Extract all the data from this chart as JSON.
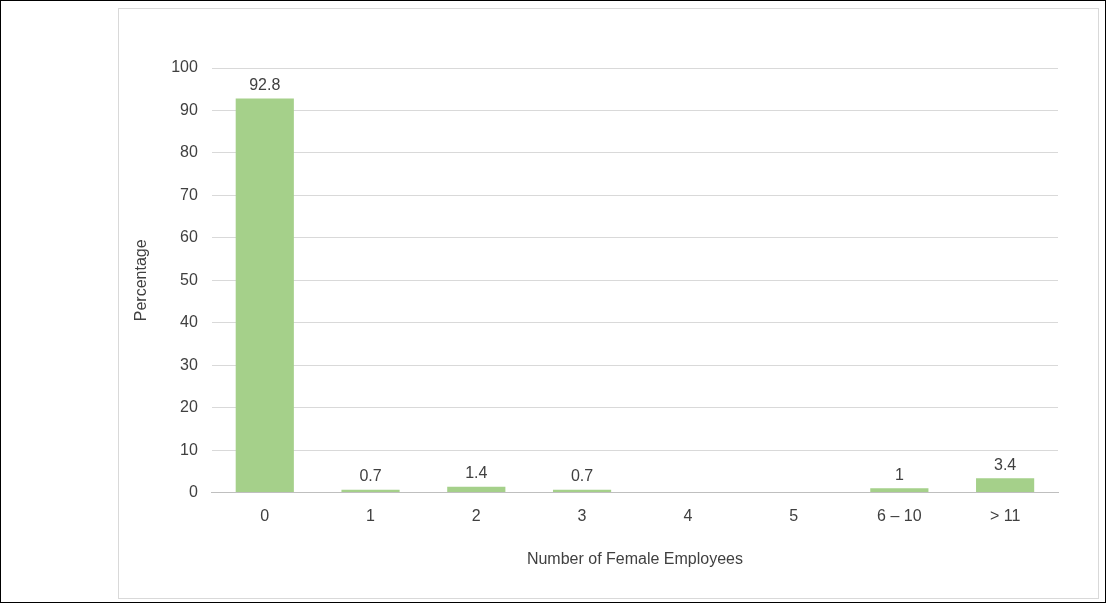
{
  "chart_data": {
    "type": "bar",
    "xlabel": "Number of Female Employees",
    "ylabel": "Percentage",
    "categories": [
      "0",
      "1",
      "2",
      "3",
      "4",
      "5",
      "6 – 10",
      "> 11"
    ],
    "values": [
      92.8,
      0.7,
      1.4,
      0.7,
      null,
      null,
      1,
      3.4
    ],
    "color": "#a5d08a",
    "ylim": [
      0,
      100
    ],
    "yticks": [
      0,
      10,
      20,
      30,
      40,
      50,
      60,
      70,
      80,
      90,
      100
    ],
    "grid": "y",
    "legend": false,
    "data_labels": true
  }
}
